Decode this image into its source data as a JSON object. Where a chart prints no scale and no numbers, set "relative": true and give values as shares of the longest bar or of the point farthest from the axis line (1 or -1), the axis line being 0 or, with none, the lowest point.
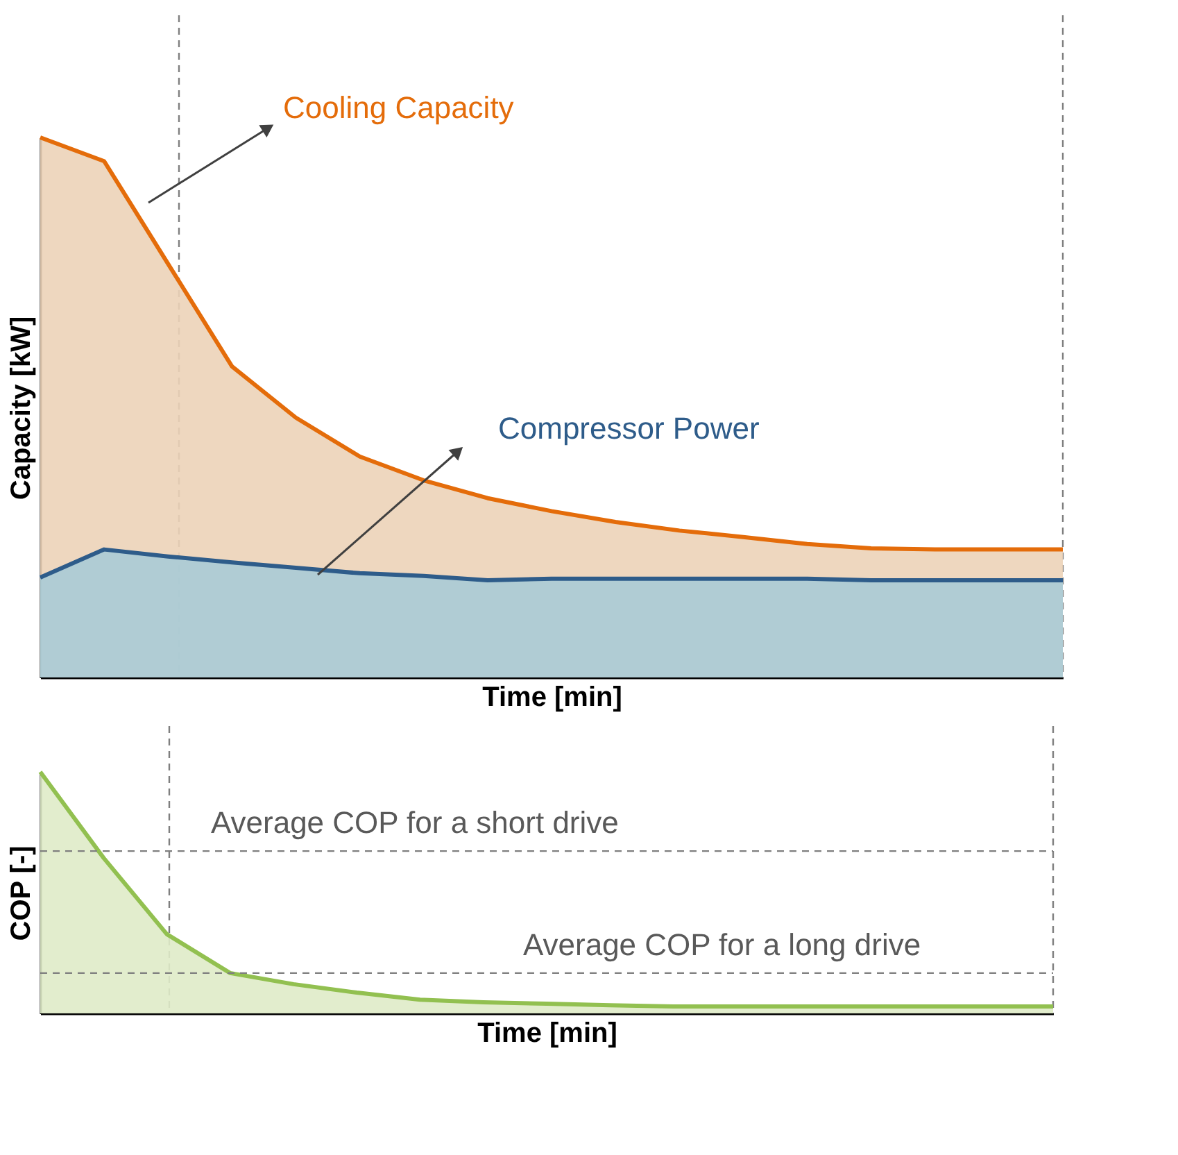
{
  "chart_data": [
    {
      "type": "area",
      "relative": true,
      "xlabel": "Time [min]",
      "ylabel": "Capacity [kW]",
      "categories": [
        null,
        null,
        null,
        null,
        null,
        null,
        null,
        null,
        null,
        null,
        null,
        null,
        null,
        null,
        null,
        null,
        null
      ],
      "series": [
        {
          "name": "Cooling Capacity",
          "color": "#e46c0a",
          "values": [
            1.0,
            0.956,
            0.766,
            0.576,
            0.481,
            0.409,
            0.365,
            0.332,
            0.308,
            0.288,
            0.272,
            0.26,
            0.247,
            0.239,
            0.237,
            0.237,
            0.237
          ]
        },
        {
          "name": "Compressor Power",
          "color": "#2e5c8a",
          "values": [
            0.185,
            0.237,
            0.224,
            0.213,
            0.203,
            0.193,
            0.188,
            0.18,
            0.183,
            0.183,
            0.183,
            0.183,
            0.183,
            0.18,
            0.18,
            0.18,
            0.18
          ]
        }
      ],
      "grid": false
    },
    {
      "type": "area",
      "relative": true,
      "xlabel": "Time [min]",
      "ylabel": "COP [-]",
      "categories": [
        null,
        null,
        null,
        null,
        null,
        null,
        null,
        null,
        null,
        null,
        null,
        null,
        null,
        null,
        null,
        null,
        null
      ],
      "series": [
        {
          "color": "#92c050",
          "values": [
            1.0,
            0.644,
            0.328,
            0.167,
            0.121,
            0.086,
            0.057,
            0.046,
            0.04,
            0.034,
            0.029,
            0.029,
            0.029,
            0.029,
            0.029,
            0.029,
            0.029
          ]
        }
      ],
      "ref_lines": [
        {
          "axis": "y",
          "value": 0.672,
          "label": "Average COP for a short drive",
          "line_style": "dashed",
          "color": "#7f7f7f"
        },
        {
          "axis": "y",
          "value": 0.167,
          "label": "Average COP for a long drive",
          "line_style": "dashed",
          "color": "#7f7f7f"
        }
      ],
      "grid": false
    }
  ]
}
